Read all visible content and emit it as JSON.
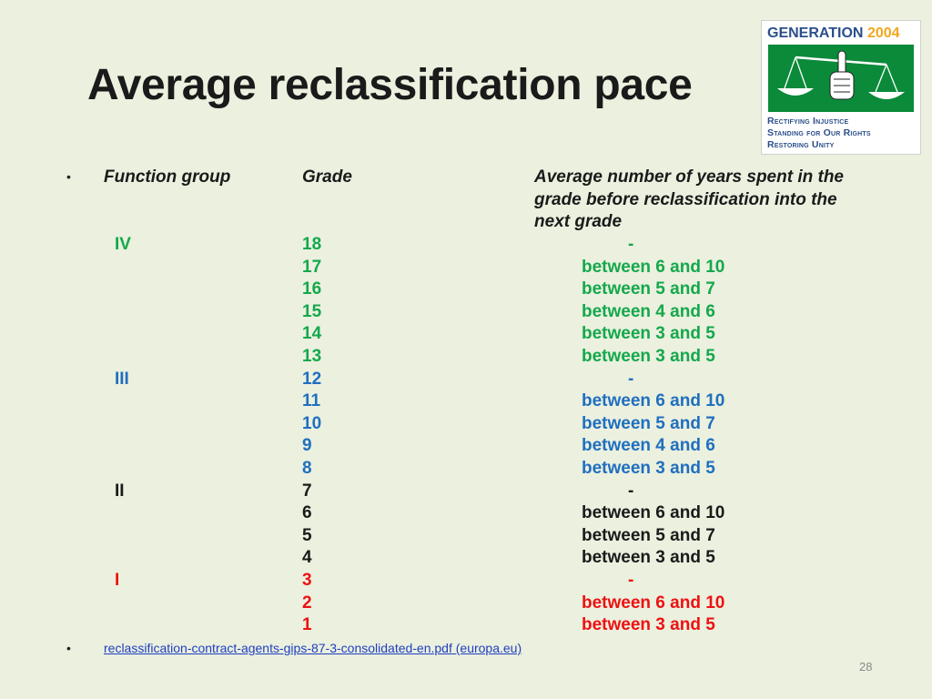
{
  "title": "Average reclassification pace",
  "logo": {
    "word": "GENERATION",
    "year": "2004",
    "line1": "Rectifying Injustice",
    "line2": "Standing for Our Rights",
    "line3": "Restoring Unity"
  },
  "header": {
    "col1": "Function group",
    "col2": "Grade",
    "col3_line1": "Average number of years spent in the",
    "col3_line2": "grade before reclassification into the",
    "col3_line3": "next grade"
  },
  "colors": {
    "IV": "#14a84c",
    "III": "#1f6fbf",
    "II": "#1a1a1a",
    "I": "#ee1111"
  },
  "table_rows": [
    {
      "group": "IV",
      "grade": "18",
      "avg": "-"
    },
    {
      "group": "",
      "grade": "17",
      "avg": "between 6 and 10"
    },
    {
      "group": "",
      "grade": "16",
      "avg": "between 5 and 7"
    },
    {
      "group": "",
      "grade": "15",
      "avg": "between 4 and 6"
    },
    {
      "group": "",
      "grade": "14",
      "avg": "between 3 and 5"
    },
    {
      "group": "",
      "grade": "13",
      "avg": "between 3 and 5"
    },
    {
      "group": "III",
      "grade": "12",
      "avg": "-"
    },
    {
      "group": "",
      "grade": "11",
      "avg": "between 6 and 10"
    },
    {
      "group": "",
      "grade": "10",
      "avg": "between 5 and 7"
    },
    {
      "group": "",
      "grade": "9",
      "avg": "between 4 and 6"
    },
    {
      "group": "",
      "grade": "8",
      "avg": "between 3 and 5"
    },
    {
      "group": "II",
      "grade": "7",
      "avg": "-"
    },
    {
      "group": "",
      "grade": "6",
      "avg": "between 6 and 10"
    },
    {
      "group": "",
      "grade": "5",
      "avg": "between 5 and 7"
    },
    {
      "group": "",
      "grade": "4",
      "avg": "between 3 and 5"
    },
    {
      "group": "I",
      "grade": "3",
      "avg": "-"
    },
    {
      "group": "",
      "grade": "2",
      "avg": "between 6 and 10"
    },
    {
      "group": "",
      "grade": "1",
      "avg": "between 3 and 5"
    }
  ],
  "source_link": "reclassification-contract-agents-gips-87-3-consolidated-en.pdf (europa.eu)",
  "bullet_char": "•",
  "page_number": "28"
}
